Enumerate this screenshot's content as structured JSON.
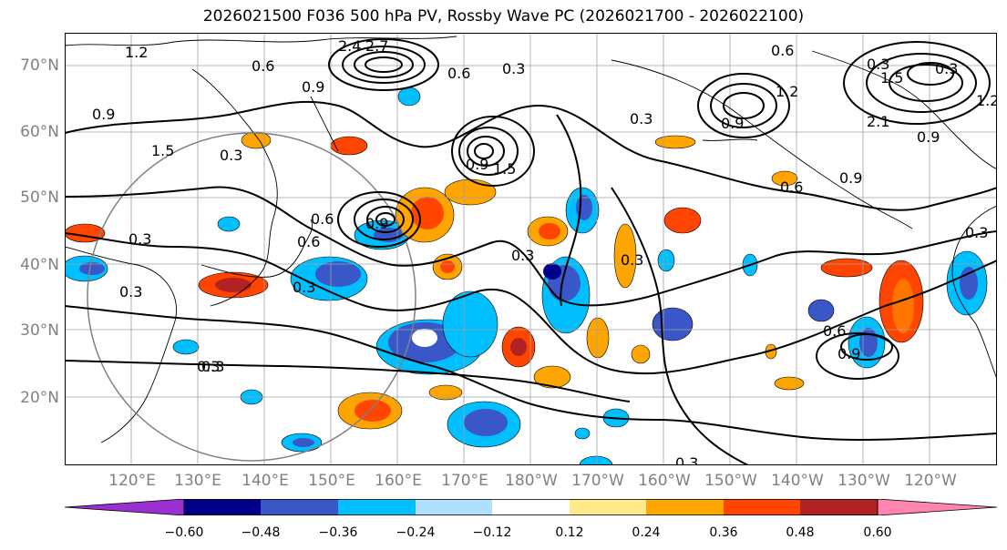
{
  "title": "2026021500 F036 500 hPa PV, Rossby Wave PC (2026021700 - 2026022100)",
  "lat_labels": [
    "70°N",
    "60°N",
    "50°N",
    "40°N",
    "30°N",
    "20°N"
  ],
  "lon_labels": [
    "120°E",
    "130°E",
    "140°E",
    "150°E",
    "160°E",
    "170°E",
    "180°W",
    "170°W",
    "160°W",
    "150°W",
    "140°W",
    "130°W",
    "120°W"
  ],
  "contour_labels": [
    "1.2",
    "0.6",
    "2.4",
    "2.7",
    "0.9",
    "0.6",
    "0.3",
    "1.5",
    "0.9",
    "0.3",
    "0.6",
    "0.9",
    "0.6",
    "0.3",
    "0.3",
    "0.3",
    "0.9",
    "1.5",
    "0.3",
    "0.3",
    "0.6",
    "0.3",
    "0.3",
    "1.2",
    "0.9",
    "0.6",
    "0.9",
    "0.3",
    "1.5",
    "2.1",
    "0.9",
    "1.2",
    "0.6",
    "0.9",
    "0.3",
    "0.3",
    "0.3",
    "0.3"
  ],
  "colorbar": {
    "ticks": [
      "−0.60",
      "−0.48",
      "−0.36",
      "−0.24",
      "−0.12",
      "0.12",
      "0.24",
      "0.36",
      "0.48",
      "0.60"
    ],
    "colors": [
      "#9b30d0",
      "#00008b",
      "#3a57c8",
      "#00bfff",
      "#b0e0ff",
      "#ffffff",
      "#ffe98a",
      "#ffa500",
      "#ff4500",
      "#b22222",
      "#ff85b0"
    ]
  }
}
